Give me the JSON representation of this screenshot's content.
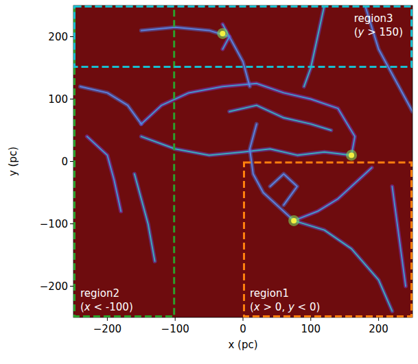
{
  "chart_data": {
    "type": "image",
    "x_label": "x (pc)",
    "y_label": "y (pc)",
    "xlim": [
      -250,
      250
    ],
    "ylim": [
      -250,
      250
    ],
    "xticks": [
      -200,
      -100,
      0,
      100,
      200
    ],
    "yticks": [
      -200,
      -100,
      0,
      100,
      200
    ],
    "regions": [
      {
        "label": "region1",
        "condition": "(x > 0, y < 0)",
        "x_range": [
          0,
          250
        ],
        "y_range": [
          -250,
          0
        ],
        "color": "#ff7f0e"
      },
      {
        "label": "region2",
        "condition": "(x < -100)",
        "x_range": [
          -250,
          -100
        ],
        "y_range": [
          -250,
          250
        ],
        "color": "#2ca02c"
      },
      {
        "label": "region3",
        "condition": "(y > 150)",
        "x_range": [
          -250,
          250
        ],
        "y_range": [
          150,
          250
        ],
        "color": "#17becf"
      }
    ],
    "structures": [
      {
        "points": [
          [
            -150,
            60
          ],
          [
            -120,
            90
          ],
          [
            -80,
            110
          ],
          [
            -30,
            120
          ],
          [
            20,
            125
          ],
          [
            60,
            110
          ],
          [
            100,
            100
          ],
          [
            140,
            85
          ],
          [
            165,
            40
          ],
          [
            160,
            10
          ]
        ]
      },
      {
        "points": [
          [
            -150,
            40
          ],
          [
            -100,
            20
          ],
          [
            -50,
            10
          ],
          [
            0,
            15
          ],
          [
            40,
            20
          ],
          [
            80,
            10
          ],
          [
            120,
            15
          ],
          [
            160,
            10
          ]
        ]
      },
      {
        "points": [
          [
            20,
            60
          ],
          [
            10,
            20
          ],
          [
            15,
            -20
          ],
          [
            30,
            -50
          ],
          [
            60,
            -80
          ],
          [
            75,
            -95
          ]
        ]
      },
      {
        "points": [
          [
            75,
            -95
          ],
          [
            110,
            -80
          ],
          [
            140,
            -60
          ],
          [
            170,
            -30
          ],
          [
            190,
            -10
          ]
        ]
      },
      {
        "points": [
          [
            75,
            -95
          ],
          [
            120,
            -110
          ],
          [
            160,
            -140
          ],
          [
            200,
            -190
          ],
          [
            220,
            -240
          ]
        ]
      },
      {
        "points": [
          [
            -240,
            120
          ],
          [
            -200,
            110
          ],
          [
            -170,
            90
          ],
          [
            -150,
            60
          ]
        ]
      },
      {
        "points": [
          [
            -230,
            40
          ],
          [
            -200,
            10
          ],
          [
            -190,
            -30
          ],
          [
            -180,
            -80
          ]
        ]
      },
      {
        "points": [
          [
            -160,
            -20
          ],
          [
            -150,
            -60
          ],
          [
            -140,
            -100
          ],
          [
            -130,
            -160
          ]
        ]
      },
      {
        "points": [
          [
            -150,
            210
          ],
          [
            -100,
            215
          ],
          [
            -50,
            210
          ],
          [
            -20,
            200
          ],
          [
            0,
            160
          ],
          [
            10,
            120
          ]
        ]
      },
      {
        "points": [
          [
            -30,
            220
          ],
          [
            -20,
            200
          ],
          [
            -30,
            180
          ]
        ]
      },
      {
        "points": [
          [
            120,
            250
          ],
          [
            110,
            200
          ],
          [
            100,
            150
          ],
          [
            90,
            120
          ]
        ]
      },
      {
        "points": [
          [
            180,
            250
          ],
          [
            200,
            180
          ],
          [
            230,
            120
          ],
          [
            250,
            80
          ]
        ]
      },
      {
        "points": [
          [
            220,
            -40
          ],
          [
            230,
            -120
          ],
          [
            240,
            -200
          ]
        ]
      },
      {
        "points": [
          [
            -20,
            80
          ],
          [
            20,
            90
          ],
          [
            60,
            70
          ],
          [
            100,
            60
          ],
          [
            130,
            50
          ]
        ]
      },
      {
        "points": [
          [
            40,
            -40
          ],
          [
            60,
            -20
          ],
          [
            80,
            -40
          ],
          [
            60,
            -70
          ]
        ]
      }
    ],
    "clumps": [
      [
        75,
        -95
      ],
      [
        160,
        10
      ],
      [
        -30,
        205
      ]
    ]
  }
}
